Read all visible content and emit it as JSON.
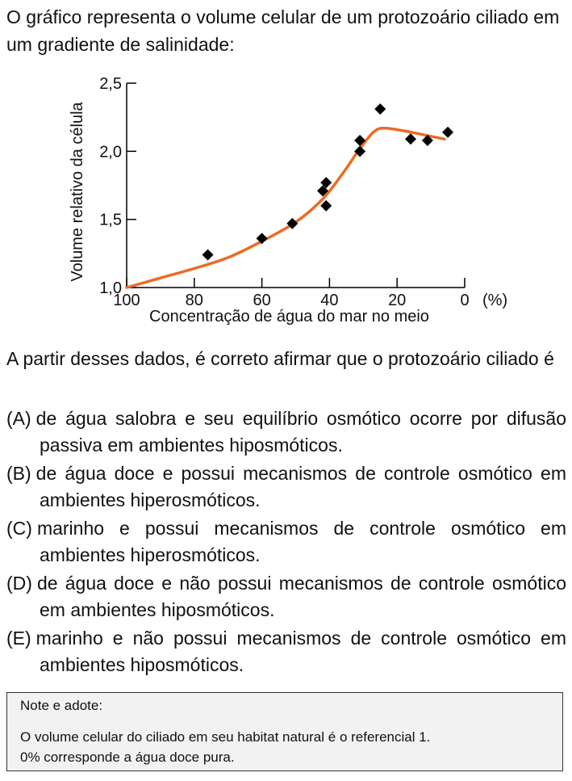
{
  "intro": "O gráfico representa o volume celular de um protozoário ciliado em um gradiente de salinidade:",
  "chart_data": {
    "type": "scatter",
    "ylabel": "Volume relativo da célula",
    "xlabel": "Concentração de água do mar no meio",
    "xunit": "(%)",
    "xlim": [
      100,
      0
    ],
    "ylim": [
      1.0,
      2.5
    ],
    "x_ticks": [
      100,
      80,
      60,
      40,
      20,
      0
    ],
    "y_ticks": [
      1.0,
      1.5,
      2.0,
      2.5
    ],
    "x_tick_labels": [
      "100",
      "80",
      "60",
      "40",
      "20",
      "0"
    ],
    "y_tick_labels": [
      "1,0",
      "1,5",
      "2,0",
      "2,5"
    ],
    "points": [
      {
        "x": 76,
        "y": 1.24
      },
      {
        "x": 60,
        "y": 1.36
      },
      {
        "x": 51,
        "y": 1.47
      },
      {
        "x": 42,
        "y": 1.71
      },
      {
        "x": 41,
        "y": 1.77
      },
      {
        "x": 41,
        "y": 1.6
      },
      {
        "x": 31,
        "y": 2.0
      },
      {
        "x": 31,
        "y": 2.08
      },
      {
        "x": 25,
        "y": 2.31
      },
      {
        "x": 16,
        "y": 2.09
      },
      {
        "x": 11,
        "y": 2.08
      },
      {
        "x": 5,
        "y": 2.14
      }
    ],
    "curve": [
      {
        "x": 100,
        "y": 1.0
      },
      {
        "x": 90,
        "y": 1.07
      },
      {
        "x": 80,
        "y": 1.14
      },
      {
        "x": 70,
        "y": 1.22
      },
      {
        "x": 60,
        "y": 1.34
      },
      {
        "x": 50,
        "y": 1.48
      },
      {
        "x": 42,
        "y": 1.65
      },
      {
        "x": 36,
        "y": 1.84
      },
      {
        "x": 31,
        "y": 2.02
      },
      {
        "x": 27,
        "y": 2.14
      },
      {
        "x": 24,
        "y": 2.17
      },
      {
        "x": 18,
        "y": 2.15
      },
      {
        "x": 12,
        "y": 2.12
      },
      {
        "x": 6,
        "y": 2.09
      }
    ],
    "curve_color": "#ee6a24",
    "marker_color": "#000000"
  },
  "question": "A partir desses dados, é correto afirmar que o protozoário ciliado é",
  "options": [
    {
      "letter": "(A)",
      "text": "de água salobra e seu equilíbrio osmótico ocorre por difusão passiva em ambientes hiposmóticos."
    },
    {
      "letter": "(B)",
      "text": "de água doce e possui mecanismos de controle osmótico em ambientes hiperosmóticos."
    },
    {
      "letter": "(C)",
      "text": "marinho e possui mecanismos de controle osmótico em ambientes hiperosmóticos."
    },
    {
      "letter": "(D)",
      "text": "de água doce e não possui mecanismos de controle osmótico em ambientes hiposmóticos."
    },
    {
      "letter": "(E)",
      "text": "marinho e não possui mecanismos de controle osmótico em ambientes hiposmóticos."
    }
  ],
  "note": {
    "title": "Note e adote:",
    "lines": [
      "O volume celular do ciliado em seu habitat natural é o referencial 1.",
      "0% corresponde a água doce pura."
    ]
  }
}
